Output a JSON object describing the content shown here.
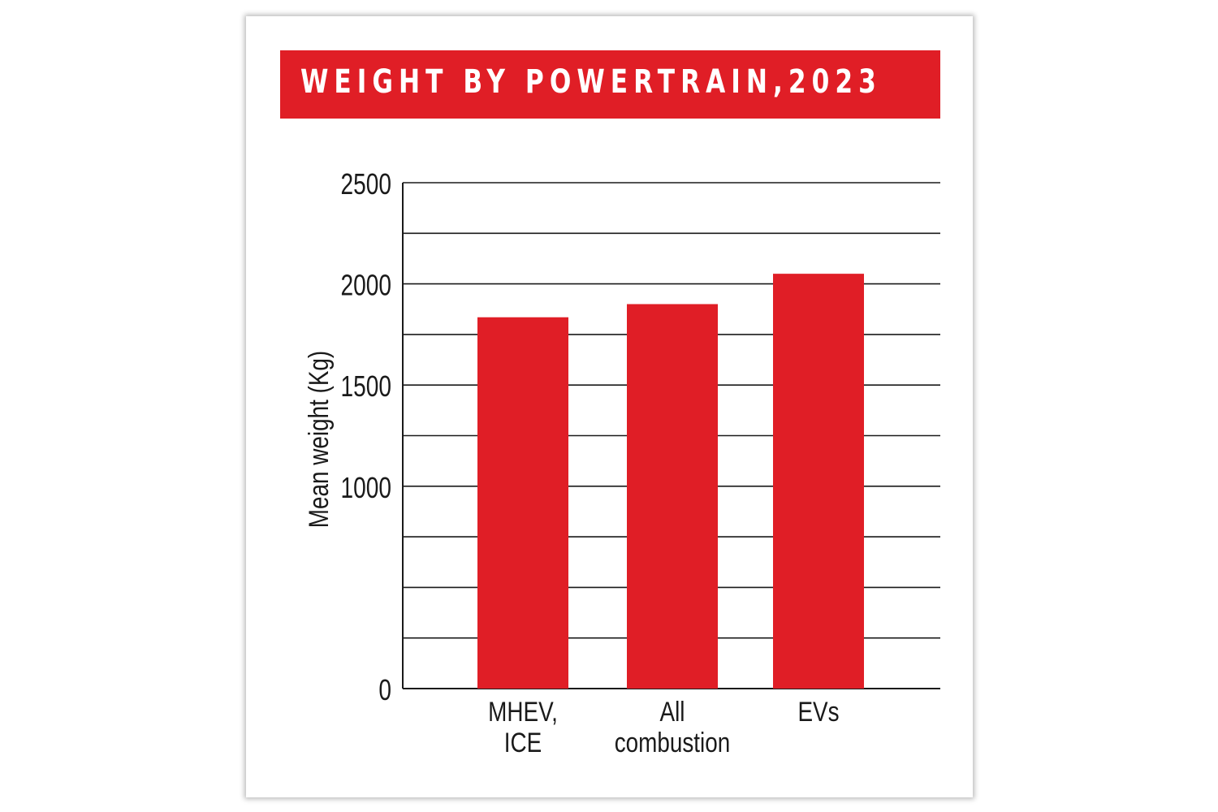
{
  "title": "WEIGHT BY POWERTRAIN,2023",
  "colors": {
    "bar": "#e01e26",
    "banner": "#e01e26",
    "grid": "#1a1a1a"
  },
  "chart_data": {
    "type": "bar",
    "title": "WEIGHT BY POWERTRAIN,2023",
    "ylabel": "Mean weight (Kg)",
    "xlabel": "",
    "ylim": [
      0,
      2500
    ],
    "yticks": [
      "0",
      "1000",
      "1500",
      "2000",
      "2500"
    ],
    "ytick_values": [
      0,
      1000,
      1500,
      2000,
      2500
    ],
    "grid_step": 250,
    "grid": true,
    "categories": [
      [
        "MHEV,",
        "ICE"
      ],
      [
        "All",
        "combustion"
      ],
      [
        "EVs"
      ]
    ],
    "values": [
      1835,
      1900,
      2050
    ]
  }
}
